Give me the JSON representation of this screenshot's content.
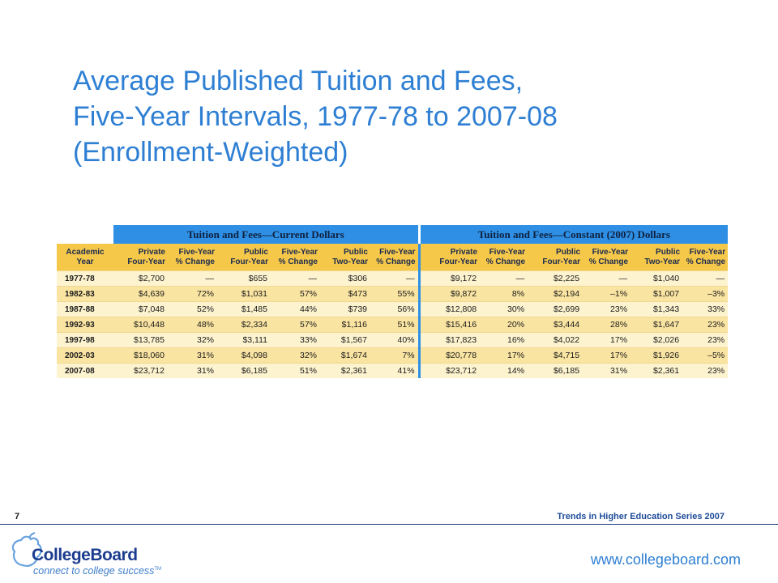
{
  "slide": {
    "title_lines": [
      "Average Published Tuition and Fees,",
      "Five-Year Intervals, 1977-78 to 2007-08",
      "(Enrollment-Weighted)"
    ],
    "page_number": "7",
    "series_label": "Trends in Higher Education Series 2007",
    "url": "www.collegeboard.com"
  },
  "logo": {
    "name": "CollegeBoard",
    "tagline": "connect to college success",
    "trademark": "TM",
    "icon": "acorn-logo-icon"
  },
  "table": {
    "group_headers": [
      "Tuition and Fees—Current Dollars",
      "Tuition and Fees—Constant (2007) Dollars"
    ],
    "columns": [
      [
        "Academic",
        "Year"
      ],
      [
        "Private",
        "Four-Year"
      ],
      [
        "Five-Year",
        "% Change"
      ],
      [
        "Public",
        "Four-Year"
      ],
      [
        "Five-Year",
        "% Change"
      ],
      [
        "Public",
        "Two-Year"
      ],
      [
        "Five-Year",
        "% Change"
      ],
      [
        "Private",
        "Four-Year"
      ],
      [
        "Five-Year",
        "% Change"
      ],
      [
        "Public",
        "Four-Year"
      ],
      [
        "Five-Year",
        "% Change"
      ],
      [
        "Public",
        "Two-Year"
      ],
      [
        "Five-Year",
        "% Change"
      ]
    ],
    "rows": [
      [
        "1977-78",
        "$2,700",
        "—",
        "$655",
        "—",
        "$306",
        "—",
        "$9,172",
        "—",
        "$2,225",
        "—",
        "$1,040",
        "—"
      ],
      [
        "1982-83",
        "$4,639",
        "72%",
        "$1,031",
        "57%",
        "$473",
        "55%",
        "$9,872",
        "8%",
        "$2,194",
        "–1%",
        "$1,007",
        "–3%"
      ],
      [
        "1987-88",
        "$7,048",
        "52%",
        "$1,485",
        "44%",
        "$739",
        "56%",
        "$12,808",
        "30%",
        "$2,699",
        "23%",
        "$1,343",
        "33%"
      ],
      [
        "1992-93",
        "$10,448",
        "48%",
        "$2,334",
        "57%",
        "$1,116",
        "51%",
        "$15,416",
        "20%",
        "$3,444",
        "28%",
        "$1,647",
        "23%"
      ],
      [
        "1997-98",
        "$13,785",
        "32%",
        "$3,111",
        "33%",
        "$1,567",
        "40%",
        "$17,823",
        "16%",
        "$4,022",
        "17%",
        "$2,026",
        "23%"
      ],
      [
        "2002-03",
        "$18,060",
        "31%",
        "$4,098",
        "32%",
        "$1,674",
        "7%",
        "$20,778",
        "17%",
        "$4,715",
        "17%",
        "$1,926",
        "–5%"
      ],
      [
        "2007-08",
        "$23,712",
        "31%",
        "$6,185",
        "51%",
        "$2,361",
        "41%",
        "$23,712",
        "14%",
        "$6,185",
        "31%",
        "$2,361",
        "23%"
      ]
    ]
  },
  "colors": {
    "title": "#2e7fd3",
    "group_header_bg": "#2f8fe4",
    "column_header_bg": "#f6c84a",
    "row_light": "#fdf3cf",
    "row_dark": "#fae4a2",
    "brand_navy": "#1c3d8f"
  }
}
